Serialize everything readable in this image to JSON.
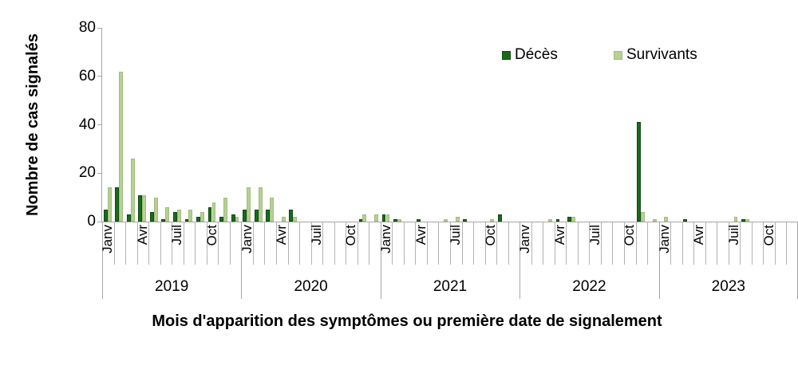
{
  "chart_data": {
    "type": "bar",
    "title": "",
    "xlabel": "Mois d'apparition des symptômes ou première date de signalement",
    "ylabel": "Nombre de cas signalés",
    "ylim": [
      0,
      80
    ],
    "yticks": [
      0,
      20,
      40,
      60,
      80
    ],
    "grid": false,
    "legend_position": "top-right-inside",
    "years": [
      "2019",
      "2020",
      "2021",
      "2022",
      "2023"
    ],
    "months_per_year": 12,
    "month_tick_labels_shown": [
      "Janv",
      "Avr",
      "Juil",
      "Oct"
    ],
    "month_label_interval": 3,
    "series": [
      {
        "name": "Décès",
        "color": "#1a6a1e",
        "values_by_year": {
          "2019": [
            5,
            14,
            3,
            11,
            4,
            1,
            4,
            1,
            2,
            6,
            2,
            3
          ],
          "2020": [
            5,
            5,
            5,
            0,
            5,
            0,
            0,
            0,
            0,
            0,
            1,
            0
          ],
          "2021": [
            3,
            1,
            0,
            1,
            0,
            0,
            0,
            1,
            0,
            0,
            3,
            0
          ],
          "2022": [
            0,
            0,
            0,
            1,
            2,
            0,
            0,
            0,
            0,
            0,
            41,
            0
          ],
          "2023": [
            0,
            0,
            1,
            0,
            0,
            0,
            0,
            1,
            0,
            0,
            0,
            0
          ]
        }
      },
      {
        "name": "Survivants",
        "color": "#b6d095",
        "values_by_year": {
          "2019": [
            14,
            62,
            26,
            11,
            10,
            6,
            5,
            5,
            4,
            8,
            10,
            2
          ],
          "2020": [
            14,
            14,
            10,
            2,
            2,
            0,
            0,
            0,
            0,
            0,
            3,
            3
          ],
          "2021": [
            3,
            1,
            0,
            0,
            0,
            1,
            2,
            0,
            0,
            1,
            0,
            0
          ],
          "2022": [
            0,
            0,
            1,
            0,
            2,
            0,
            0,
            0,
            0,
            0,
            4,
            1
          ],
          "2023": [
            2,
            0,
            0,
            0,
            0,
            0,
            2,
            1,
            0,
            0,
            0,
            0
          ]
        }
      }
    ],
    "axis_color": "#a6a6a6",
    "text_color": "#000000"
  }
}
